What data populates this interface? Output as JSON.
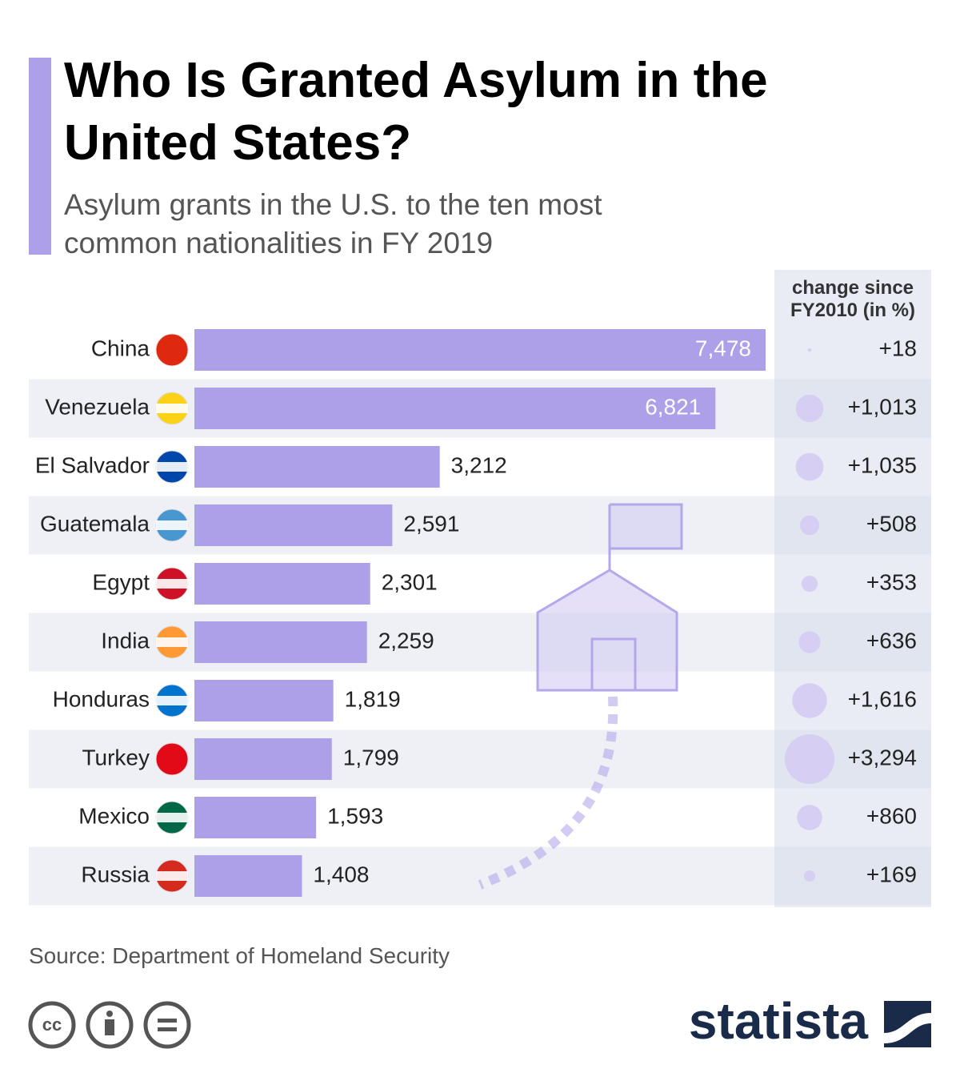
{
  "chart_data": {
    "type": "bar",
    "title": "Who Is Granted Asylum in the United States?",
    "subtitle": "Asylum grants in the U.S. to the ten most common nationalities in FY 2019",
    "categories": [
      "China",
      "Venezuela",
      "El Salvador",
      "Guatemala",
      "Egypt",
      "India",
      "Honduras",
      "Turkey",
      "Mexico",
      "Russia"
    ],
    "values": [
      7478,
      6821,
      3212,
      2591,
      2301,
      2259,
      1819,
      1799,
      1593,
      1408
    ],
    "value_labels": [
      "7,478",
      "6,821",
      "3,212",
      "2,591",
      "2,301",
      "2,259",
      "1,819",
      "1,799",
      "1,593",
      "1,408"
    ],
    "color": "#ad9fe8",
    "change_header": [
      "change since",
      "FY2010 (in %)"
    ],
    "change_values": [
      18,
      1013,
      1035,
      508,
      353,
      636,
      1616,
      3294,
      860,
      169
    ],
    "change_labels": [
      "+18",
      "+1,013",
      "+1,035",
      "+508",
      "+353",
      "+636",
      "+1,616",
      "+3,294",
      "+860",
      "+169"
    ],
    "bubble_color": "#d6cff3",
    "source": "Source: Department of Homeland Security",
    "brand": "statista"
  }
}
